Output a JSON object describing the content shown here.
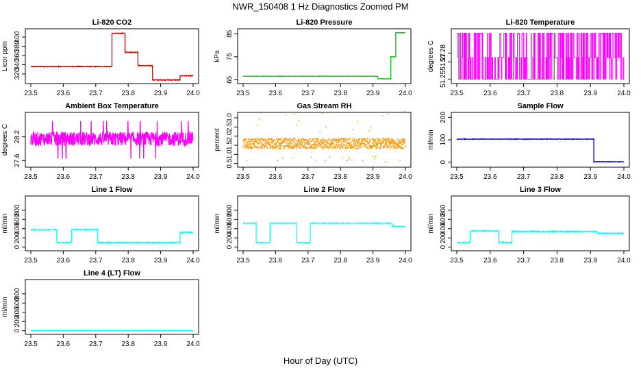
{
  "figure": {
    "title": "NWR_150408  1 Hz Diagnostics Zoomed PM",
    "xlabel": "Hour of Day (UTC)"
  },
  "chart_data": [
    {
      "id": "co2",
      "type": "line",
      "title": "Li-820 CO2",
      "ylabel": "Licor ppm",
      "color": "#d40000",
      "xlim": [
        23.5,
        24.0
      ],
      "ylim": [
        305,
        412
      ],
      "xticks": [
        23.5,
        23.6,
        23.7,
        23.8,
        23.9,
        24.0
      ],
      "xtick_labels": [
        "23.5",
        "23.6",
        "23.7",
        "23.8",
        "23.9",
        "24.0"
      ],
      "yticks": [
        320,
        340,
        360,
        380,
        400
      ],
      "ytick_labels": [
        "320",
        "340",
        "360",
        "380",
        "400"
      ],
      "noise": 0.8,
      "segments": [
        [
          23.5,
          23.75,
          336
        ],
        [
          23.75,
          23.79,
          408
        ],
        [
          23.79,
          23.83,
          367
        ],
        [
          23.83,
          23.875,
          338
        ],
        [
          23.875,
          23.96,
          307
        ],
        [
          23.96,
          24.0,
          316
        ]
      ]
    },
    {
      "id": "pressure",
      "type": "line",
      "title": "Li-820 Pressure",
      "ylabel": "kPa",
      "color": "#00cc00",
      "xlim": [
        23.5,
        24.0
      ],
      "ylim": [
        64.5,
        86
      ],
      "xticks": [
        23.5,
        23.6,
        23.7,
        23.8,
        23.9,
        24.0
      ],
      "xtick_labels": [
        "23.5",
        "23.6",
        "23.7",
        "23.8",
        "23.9",
        "24.0"
      ],
      "yticks": [
        65,
        75,
        85
      ],
      "ytick_labels": [
        "65",
        "75",
        "85"
      ],
      "noise": 0.1,
      "segments": [
        [
          23.5,
          23.915,
          66.5
        ],
        [
          23.915,
          23.955,
          65.4
        ],
        [
          23.955,
          23.97,
          75.0
        ],
        [
          23.97,
          24.0,
          85.5
        ]
      ]
    },
    {
      "id": "licor_temp",
      "type": "step-binary",
      "title": "Li-820 Temperature",
      "ylabel": "degrees C",
      "color": "#ff00ff",
      "xlim": [
        23.5,
        24.0
      ],
      "ylim": [
        51.248,
        51.305
      ],
      "xticks": [
        23.5,
        23.6,
        23.7,
        23.8,
        23.9,
        24.0
      ],
      "xtick_labels": [
        "23.5",
        "23.6",
        "23.7",
        "23.8",
        "23.9",
        "24.0"
      ],
      "yticks": [
        51.25,
        51.27,
        51.28
      ],
      "ytick_labels": [
        "51.25",
        "51.27",
        "51.28"
      ],
      "levels": [
        51.25,
        51.275,
        51.303
      ],
      "segments": []
    },
    {
      "id": "box_temp",
      "type": "line",
      "title": "Ambient Box Temperature",
      "ylabel": "degrees C",
      "color": "#ff00ff",
      "xlim": [
        23.5,
        24.0
      ],
      "ylim": [
        27.5,
        28.75
      ],
      "xticks": [
        23.5,
        23.6,
        23.7,
        23.8,
        23.9,
        24.0
      ],
      "xtick_labels": [
        "23.5",
        "23.6",
        "23.7",
        "23.8",
        "23.9",
        "24.0"
      ],
      "yticks": [
        27.6,
        28.2
      ],
      "ytick_labels": [
        "27.6",
        "28.2"
      ],
      "noise": 0.18,
      "segments": [
        [
          23.5,
          24.0,
          28.15
        ]
      ]
    },
    {
      "id": "rh",
      "type": "scatter",
      "title": "Gas Stream RH",
      "ylabel": "percent",
      "color": "#ff9900",
      "xlim": [
        23.5,
        24.0
      ],
      "ylim": [
        0.45,
        3.15
      ],
      "xticks": [
        23.5,
        23.6,
        23.7,
        23.8,
        23.9,
        24.0
      ],
      "xtick_labels": [
        "23.5",
        "23.6",
        "23.7",
        "23.8",
        "23.9",
        "24.0"
      ],
      "yticks": [
        0.5,
        1.0,
        1.5,
        2.0,
        2.5,
        3.0
      ],
      "ytick_labels": [
        "0.5",
        "1.0",
        "1.5",
        "2.0",
        "2.5",
        "3.0"
      ],
      "noise": 0.28,
      "segments": [
        [
          23.5,
          24.0,
          1.6
        ]
      ]
    },
    {
      "id": "sample_flow",
      "type": "line",
      "title": "Sample Flow",
      "ylabel": "ml/min",
      "color": "#0000cc",
      "xlim": [
        23.5,
        24.0
      ],
      "ylim": [
        -10,
        210
      ],
      "xticks": [
        23.5,
        23.6,
        23.7,
        23.8,
        23.9,
        24.0
      ],
      "xtick_labels": [
        "23.5",
        "23.6",
        "23.7",
        "23.8",
        "23.9",
        "24.0"
      ],
      "yticks": [
        0,
        100,
        200
      ],
      "ytick_labels": [
        "0",
        "100",
        "200"
      ],
      "noise": 1.2,
      "segments": [
        [
          23.5,
          23.91,
          103
        ],
        [
          23.91,
          24.0,
          2
        ]
      ]
    },
    {
      "id": "line1",
      "type": "line",
      "title": "Line 1 Flow",
      "ylabel": "ml/min",
      "color": "#00ffff",
      "xlim": [
        23.5,
        24.0
      ],
      "ylim": [
        -20,
        1050
      ],
      "xticks": [
        23.5,
        23.6,
        23.7,
        23.8,
        23.9,
        24.0
      ],
      "xtick_labels": [
        "23.5",
        "23.6",
        "23.7",
        "23.8",
        "23.9",
        "24.0"
      ],
      "yticks": [
        0,
        200,
        400,
        600,
        800
      ],
      "ytick_labels": [
        "0",
        "200",
        "400",
        "600",
        "800"
      ],
      "noise": 10,
      "segments": [
        [
          23.5,
          23.58,
          375
        ],
        [
          23.58,
          23.625,
          100
        ],
        [
          23.625,
          23.705,
          380
        ],
        [
          23.705,
          23.96,
          100
        ],
        [
          23.96,
          24.0,
          320
        ]
      ]
    },
    {
      "id": "line2",
      "type": "line",
      "title": "Line 2 Flow",
      "ylabel": "ml/min",
      "color": "#00ffff",
      "xlim": [
        23.5,
        24.0
      ],
      "ylim": [
        -20,
        1050
      ],
      "xticks": [
        23.5,
        23.6,
        23.7,
        23.8,
        23.9,
        24.0
      ],
      "xtick_labels": [
        "23.5",
        "23.6",
        "23.7",
        "23.8",
        "23.9",
        "24.0"
      ],
      "yticks": [
        0,
        200,
        400,
        600,
        800
      ],
      "ytick_labels": [
        "0",
        "200",
        "400",
        "600",
        "800"
      ],
      "noise": 7,
      "segments": [
        [
          23.5,
          23.54,
          520
        ],
        [
          23.54,
          23.583,
          100
        ],
        [
          23.583,
          23.665,
          520
        ],
        [
          23.665,
          23.707,
          100
        ],
        [
          23.707,
          23.96,
          520
        ],
        [
          23.96,
          24.0,
          450
        ]
      ]
    },
    {
      "id": "line3",
      "type": "line",
      "title": "Line 3 Flow",
      "ylabel": "ml/min",
      "color": "#00ffff",
      "xlim": [
        23.5,
        24.0
      ],
      "ylim": [
        -20,
        1050
      ],
      "xticks": [
        23.5,
        23.6,
        23.7,
        23.8,
        23.9,
        24.0
      ],
      "xtick_labels": [
        "23.5",
        "23.6",
        "23.7",
        "23.8",
        "23.9",
        "24.0"
      ],
      "yticks": [
        0,
        200,
        400,
        600,
        800
      ],
      "ytick_labels": [
        "0",
        "200",
        "400",
        "600",
        "800"
      ],
      "noise": 10,
      "segments": [
        [
          23.5,
          23.54,
          100
        ],
        [
          23.54,
          23.625,
          350
        ],
        [
          23.625,
          23.665,
          100
        ],
        [
          23.665,
          23.92,
          340
        ],
        [
          23.92,
          24.0,
          300
        ]
      ]
    },
    {
      "id": "line4",
      "type": "line",
      "title": "Line 4 (LT) Flow",
      "ylabel": "ml/min",
      "color": "#00ffff",
      "xlim": [
        23.5,
        24.0
      ],
      "ylim": [
        -20,
        1050
      ],
      "xticks": [
        23.5,
        23.6,
        23.7,
        23.8,
        23.9,
        24.0
      ],
      "xtick_labels": [
        "23.5",
        "23.6",
        "23.7",
        "23.8",
        "23.9",
        "24.0"
      ],
      "yticks": [
        0,
        200,
        400,
        600,
        800
      ],
      "ytick_labels": [
        "0",
        "200",
        "400",
        "600",
        "800"
      ],
      "noise": 2,
      "segments": [
        [
          23.5,
          24.0,
          5
        ]
      ]
    }
  ]
}
